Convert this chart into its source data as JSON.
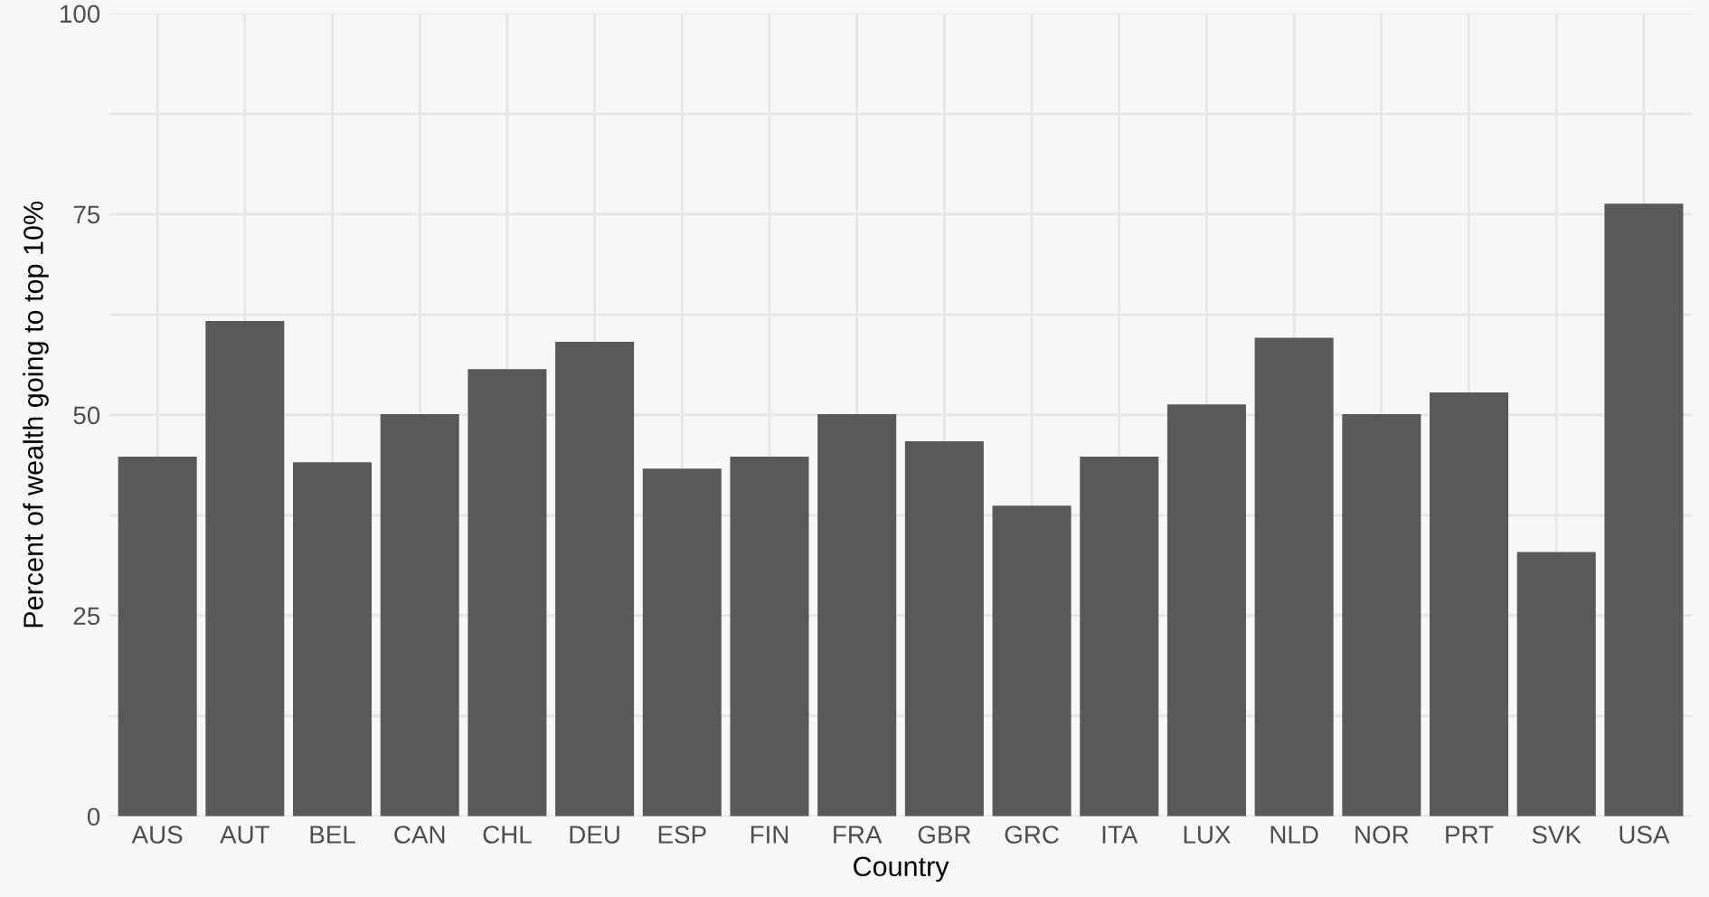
{
  "chart_data": {
    "type": "bar",
    "xlabel": "Country",
    "ylabel": "Percent of wealth going to top 10%",
    "categories": [
      "AUS",
      "AUT",
      "BEL",
      "CAN",
      "CHL",
      "DEU",
      "ESP",
      "FIN",
      "FRA",
      "GBR",
      "GRC",
      "ITA",
      "LUX",
      "NLD",
      "NOR",
      "PRT",
      "SVK",
      "USA"
    ],
    "values": [
      44.8,
      61.7,
      44.1,
      50.1,
      55.7,
      59.1,
      43.3,
      44.8,
      50.1,
      46.7,
      38.7,
      44.8,
      51.3,
      59.6,
      50.1,
      52.8,
      32.9,
      76.3
    ],
    "color": "#595959",
    "ylim": [
      0,
      100
    ],
    "yticks": [
      0,
      {
        "value": 12.5,
        "label": null
      },
      25,
      {
        "value": 37.5,
        "label": null
      },
      50,
      {
        "value": 62.5,
        "label": null
      },
      75,
      {
        "value": 87.5,
        "label": null
      },
      100
    ],
    "grid": true
  }
}
